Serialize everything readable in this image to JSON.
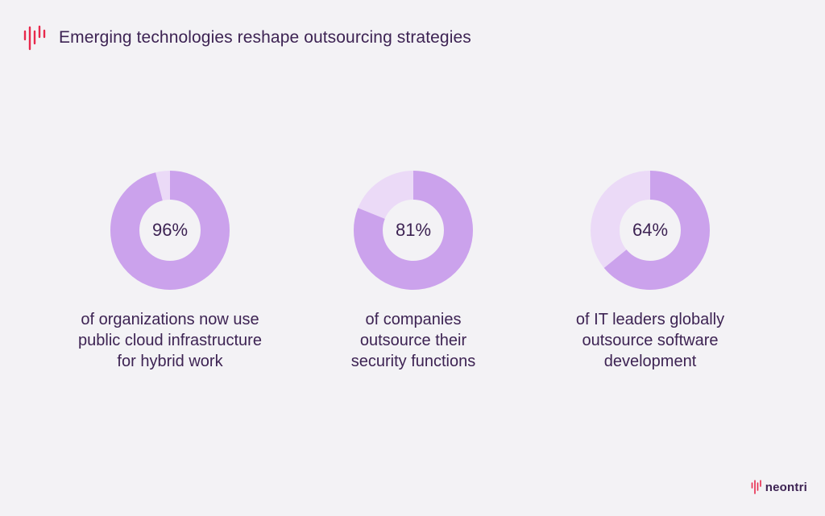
{
  "header": {
    "title": "Emerging technologies reshape outsourcing strategies",
    "logo_icon": "soundwave-logo-icon",
    "logo_color": "#e8294c"
  },
  "colors": {
    "background": "#f3f2f5",
    "text": "#3d2353",
    "filled": "#cba2ec",
    "remainder": "#ebdaf7"
  },
  "chart_data": [
    {
      "type": "pie",
      "style": "donut",
      "value_percent": 96,
      "label": "96%",
      "caption_lines": [
        "of organizations now use",
        "public cloud infrastructure",
        "for hybrid work"
      ]
    },
    {
      "type": "pie",
      "style": "donut",
      "value_percent": 81,
      "label": "81%",
      "caption_lines": [
        "of companies",
        "outsource their",
        "security functions"
      ]
    },
    {
      "type": "pie",
      "style": "donut",
      "value_percent": 64,
      "label": "64%",
      "caption_lines": [
        "of IT leaders globally",
        "outsource software",
        "development"
      ]
    }
  ],
  "brand": {
    "name": "neontri",
    "logo_icon": "soundwave-logo-icon"
  }
}
